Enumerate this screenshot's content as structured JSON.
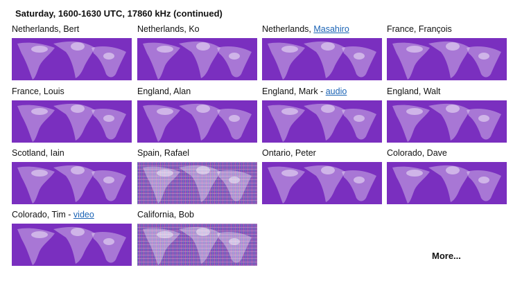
{
  "title": "Saturday, 1600-1630 UTC, 17860 kHz (continued)",
  "colors": {
    "map_background": "#7a2fbf",
    "link": "#1a63b5"
  },
  "items": [
    {
      "label": "Netherlands, Bert"
    },
    {
      "label": "Netherlands, ",
      "link": "Masahiro",
      "prefix_only": false,
      "name_is_link": true
    },
    {
      "label": "France, François"
    },
    {
      "label": "Netherlands, Ko"
    },
    {
      "label": "France, Louis"
    },
    {
      "label": "England, Alan"
    },
    {
      "label": "England, Mark - ",
      "link": "audio"
    },
    {
      "label": "England, Walt"
    },
    {
      "label": "Scotland, Iain"
    },
    {
      "label": "Spain, Rafael",
      "noisy": true
    },
    {
      "label": "Ontario, Peter"
    },
    {
      "label": "Colorado, Dave"
    },
    {
      "label": "Colorado, Tim - ",
      "link": "video"
    },
    {
      "label": "California, Bob",
      "noisy": true
    }
  ],
  "more_label": "More..."
}
